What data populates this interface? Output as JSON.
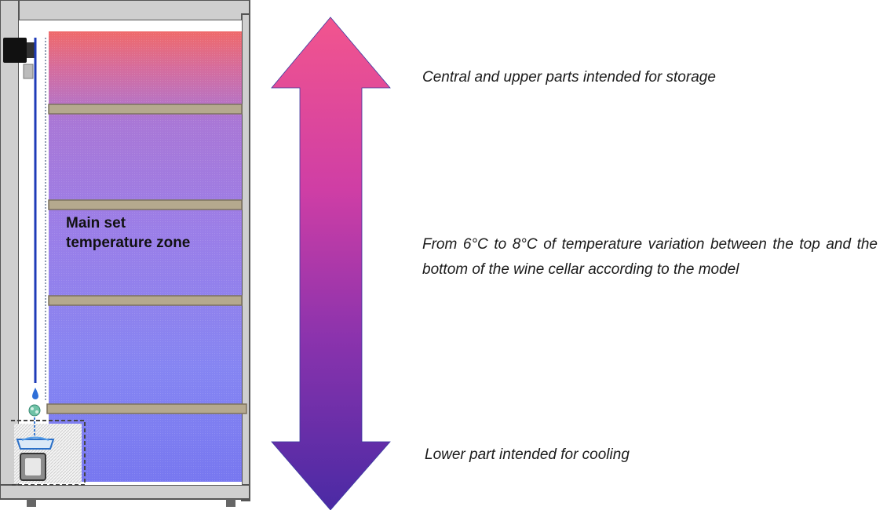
{
  "diagram": {
    "zone_label": "Main set temperature zone",
    "notes": {
      "top": "Central and upper parts intended for storage",
      "middle": "From 6°C to 8°C of temperature variation between the top and the bottom of the wine cellar according to the model",
      "bottom": "Lower part intended for cooling"
    },
    "colors": {
      "cabinet_outline": "#555555",
      "wall_fill": "#d8d8d8",
      "warm_zone": "#ef6a6a",
      "mid_zone": "#9a76dd",
      "cold_zone": "#7b7bf0",
      "shelf": "#b5a98e",
      "shelf_edge": "#7d735e",
      "arrow_top": "#f2558e",
      "arrow_middle": "#c641a8",
      "arrow_bottom": "#4e2aa6",
      "thermometer_line": "#1f3bb8"
    },
    "icons": {
      "thermostat": "thermostat-control-icon",
      "water_drop": "water-drop-icon",
      "condensation_tray": "drip-tray-icon",
      "arrow": "double-headed-arrow-icon"
    }
  }
}
